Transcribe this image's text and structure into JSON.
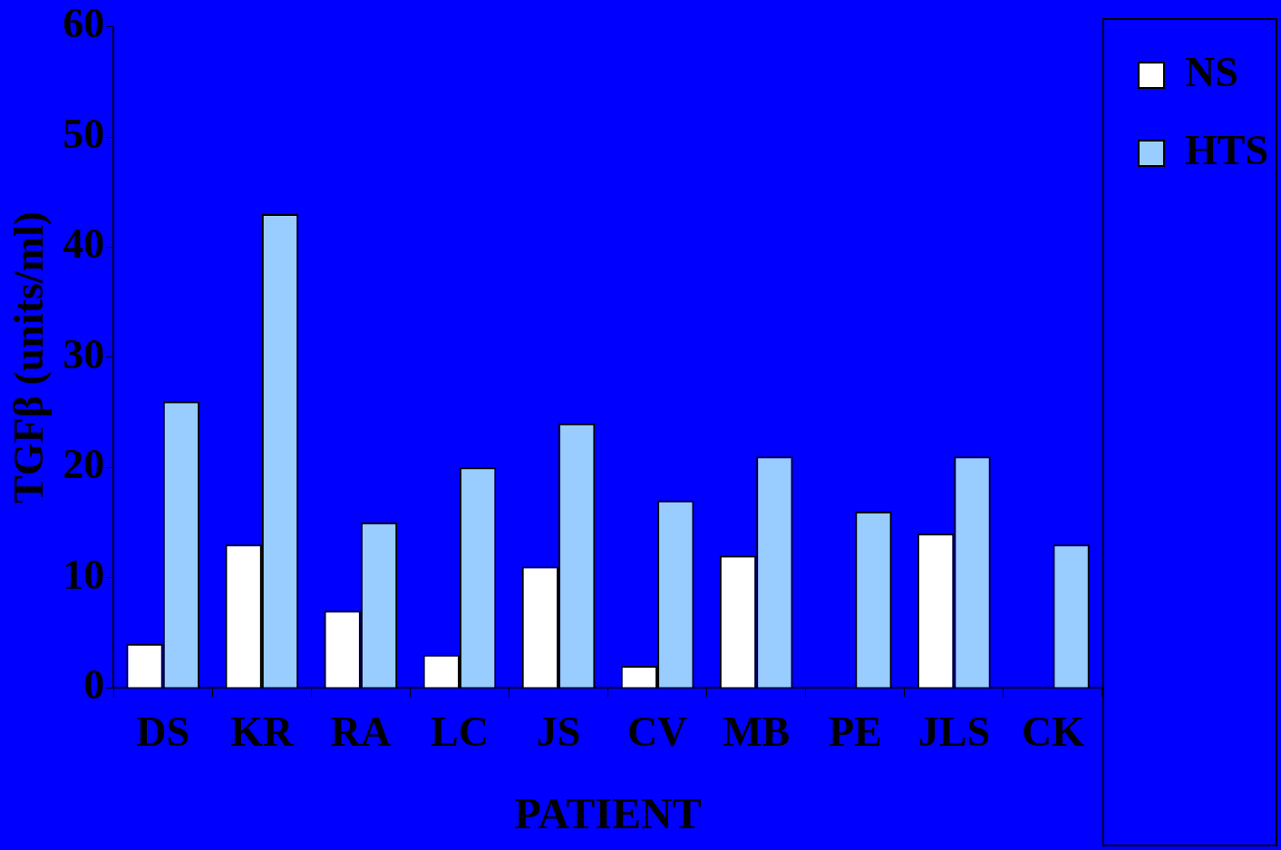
{
  "chart_data": {
    "type": "bar",
    "xlabel": "PATIENT",
    "ylabel": "TGFβ (units/ml)",
    "categories": [
      "DS",
      "KR",
      "RA",
      "LC",
      "JS",
      "CV",
      "MB",
      "PE",
      "JLS",
      "CK"
    ],
    "series": [
      {
        "name": "NS",
        "color": "#ffffff",
        "values": [
          4,
          13,
          7,
          3,
          11,
          2,
          12,
          null,
          14,
          null
        ]
      },
      {
        "name": "HTS",
        "color": "#99ccff",
        "values": [
          26,
          43,
          15,
          20,
          24,
          17,
          21,
          16,
          21,
          13
        ]
      }
    ],
    "ylim": [
      0,
      60
    ],
    "yticks": [
      0,
      10,
      20,
      30,
      40,
      50,
      60
    ],
    "grid": false,
    "legend": "top right"
  }
}
